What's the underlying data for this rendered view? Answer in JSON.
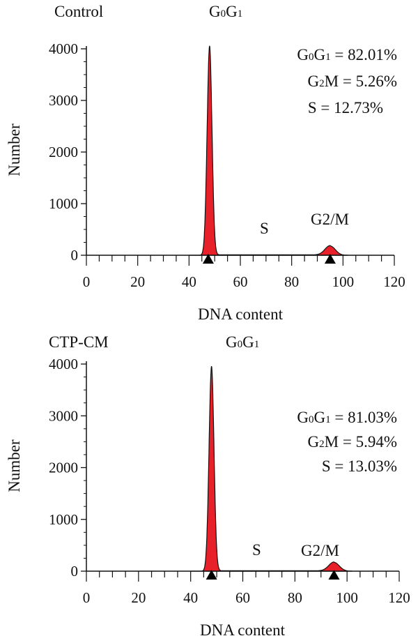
{
  "chart_data": [
    {
      "type": "histogram",
      "title": "Control",
      "xlabel": "DNA content",
      "ylabel": "Number",
      "xlim": [
        0,
        120
      ],
      "ylim": [
        0,
        4000
      ],
      "x_ticks": [
        0,
        20,
        40,
        60,
        80,
        100,
        120
      ],
      "y_ticks": [
        0,
        1000,
        2000,
        3000,
        4000
      ],
      "peak_label": {
        "main": "G",
        "sub1": "0",
        "mid": "G",
        "sub2": "1"
      },
      "region_labels": {
        "s": "S",
        "g2m": "G2/M"
      },
      "stats": [
        {
          "main": "G",
          "sub1": "0",
          "mid": "G",
          "sub2": "1",
          "rest": " = 82.01%"
        },
        {
          "main": "G",
          "sub1": "2",
          "mid": "M",
          "sub2": "",
          "rest": " = 5.26%"
        },
        {
          "main": "S",
          "sub1": "",
          "mid": "",
          "sub2": "",
          "rest": " = 12.73%"
        }
      ],
      "markers_x": [
        47.5,
        95
      ],
      "g0g1_peak": {
        "x": 48,
        "height": 4050,
        "sigma": 0.95
      },
      "g2m_peak": {
        "x": 95,
        "height": 180,
        "sigma": 2.0
      },
      "fill_color": "#e8202a"
    },
    {
      "type": "histogram",
      "title": "CTP-CM",
      "xlabel": "DNA content",
      "ylabel": "Number",
      "xlim": [
        0,
        120
      ],
      "ylim": [
        0,
        4000
      ],
      "x_ticks": [
        0,
        20,
        40,
        60,
        80,
        100,
        120
      ],
      "y_ticks": [
        0,
        1000,
        2000,
        3000,
        4000
      ],
      "peak_label": {
        "main": "G",
        "sub1": "0",
        "mid": "G",
        "sub2": "1"
      },
      "region_labels": {
        "s": "S",
        "g2m": "G2/M"
      },
      "stats": [
        {
          "main": "G",
          "sub1": "0",
          "mid": "G",
          "sub2": "1",
          "rest": " = 81.03%"
        },
        {
          "main": "G",
          "sub1": "2",
          "mid": "M",
          "sub2": "",
          "rest": " = 5.94%"
        },
        {
          "main": "S",
          "sub1": "",
          "mid": "",
          "sub2": "",
          "rest": " = 13.03%"
        }
      ],
      "markers_x": [
        48,
        95
      ],
      "g0g1_peak": {
        "x": 48,
        "height": 3950,
        "sigma": 0.95
      },
      "g2m_peak": {
        "x": 95,
        "height": 170,
        "sigma": 2.0
      },
      "fill_color": "#e8202a"
    }
  ]
}
